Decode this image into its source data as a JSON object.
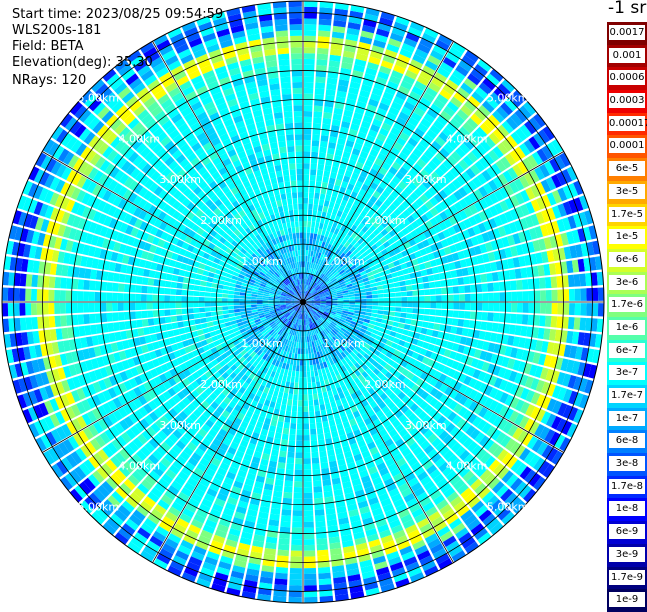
{
  "info": {
    "start_time": "Start time: 2023/08/25 09:54:59",
    "instrument": "WLS200s-181",
    "field": "Field: BETA",
    "elevation": "Elevation(deg): 35.30",
    "nrays": "NRays: 120"
  },
  "unit_label": "-1 sr",
  "chart_data": {
    "type": "heatmap",
    "projection": "polar",
    "field": "BETA",
    "n_rays": 120,
    "range_ring_labels_km": [
      "1.00km",
      "2.00km",
      "3.00km",
      "4.00km",
      "5.00km"
    ],
    "range_rings_km": [
      1,
      2,
      3,
      4,
      5
    ],
    "max_range_km": 5.2,
    "color_scale": "log",
    "legend": [
      {
        "label": "0.0017",
        "color": "#7f0000"
      },
      {
        "label": "0.001",
        "color": "#a20000"
      },
      {
        "label": "0.0006",
        "color": "#c80000"
      },
      {
        "label": "0.0003",
        "color": "#ee0000"
      },
      {
        "label": "0.00017",
        "color": "#ff2a00"
      },
      {
        "label": "0.0001",
        "color": "#ff5500"
      },
      {
        "label": "6e-5",
        "color": "#ff7f00"
      },
      {
        "label": "3e-5",
        "color": "#ffaa00"
      },
      {
        "label": "1.7e-5",
        "color": "#ffd400"
      },
      {
        "label": "1e-5",
        "color": "#ffff00"
      },
      {
        "label": "6e-6",
        "color": "#d4ff2a"
      },
      {
        "label": "3e-6",
        "color": "#aaff55"
      },
      {
        "label": "1.7e-6",
        "color": "#7fff7f"
      },
      {
        "label": "1e-6",
        "color": "#55ffaa"
      },
      {
        "label": "6e-7",
        "color": "#2affd4"
      },
      {
        "label": "3e-7",
        "color": "#00ffff"
      },
      {
        "label": "1.7e-7",
        "color": "#00d4ff"
      },
      {
        "label": "1e-7",
        "color": "#00aaff"
      },
      {
        "label": "6e-8",
        "color": "#007fff"
      },
      {
        "label": "3e-8",
        "color": "#0055ff"
      },
      {
        "label": "1.7e-8",
        "color": "#002aff"
      },
      {
        "label": "1e-8",
        "color": "#0000ff"
      },
      {
        "label": "6e-9",
        "color": "#0000d4"
      },
      {
        "label": "3e-9",
        "color": "#0000aa"
      },
      {
        "label": "1.7e-9",
        "color": "#00007f"
      },
      {
        "label": "1e-9",
        "color": "#000060"
      }
    ],
    "radial_profile_approx": [
      {
        "range_km": [
          0.0,
          0.5
        ],
        "level": "1.7e-8 to 1e-7"
      },
      {
        "range_km": [
          0.5,
          1.2
        ],
        "level": "6e-8 to 3e-7"
      },
      {
        "range_km": [
          1.2,
          4.0
        ],
        "level": "1.7e-7 to 3e-7"
      },
      {
        "range_km": [
          4.0,
          4.3
        ],
        "level": "3e-7 to 6e-7"
      },
      {
        "range_km": [
          4.3,
          4.6
        ],
        "level": "6e-6 to 1e-5"
      },
      {
        "range_km": [
          4.6,
          5.2
        ],
        "level": "1e-8 to 6e-7"
      }
    ]
  }
}
